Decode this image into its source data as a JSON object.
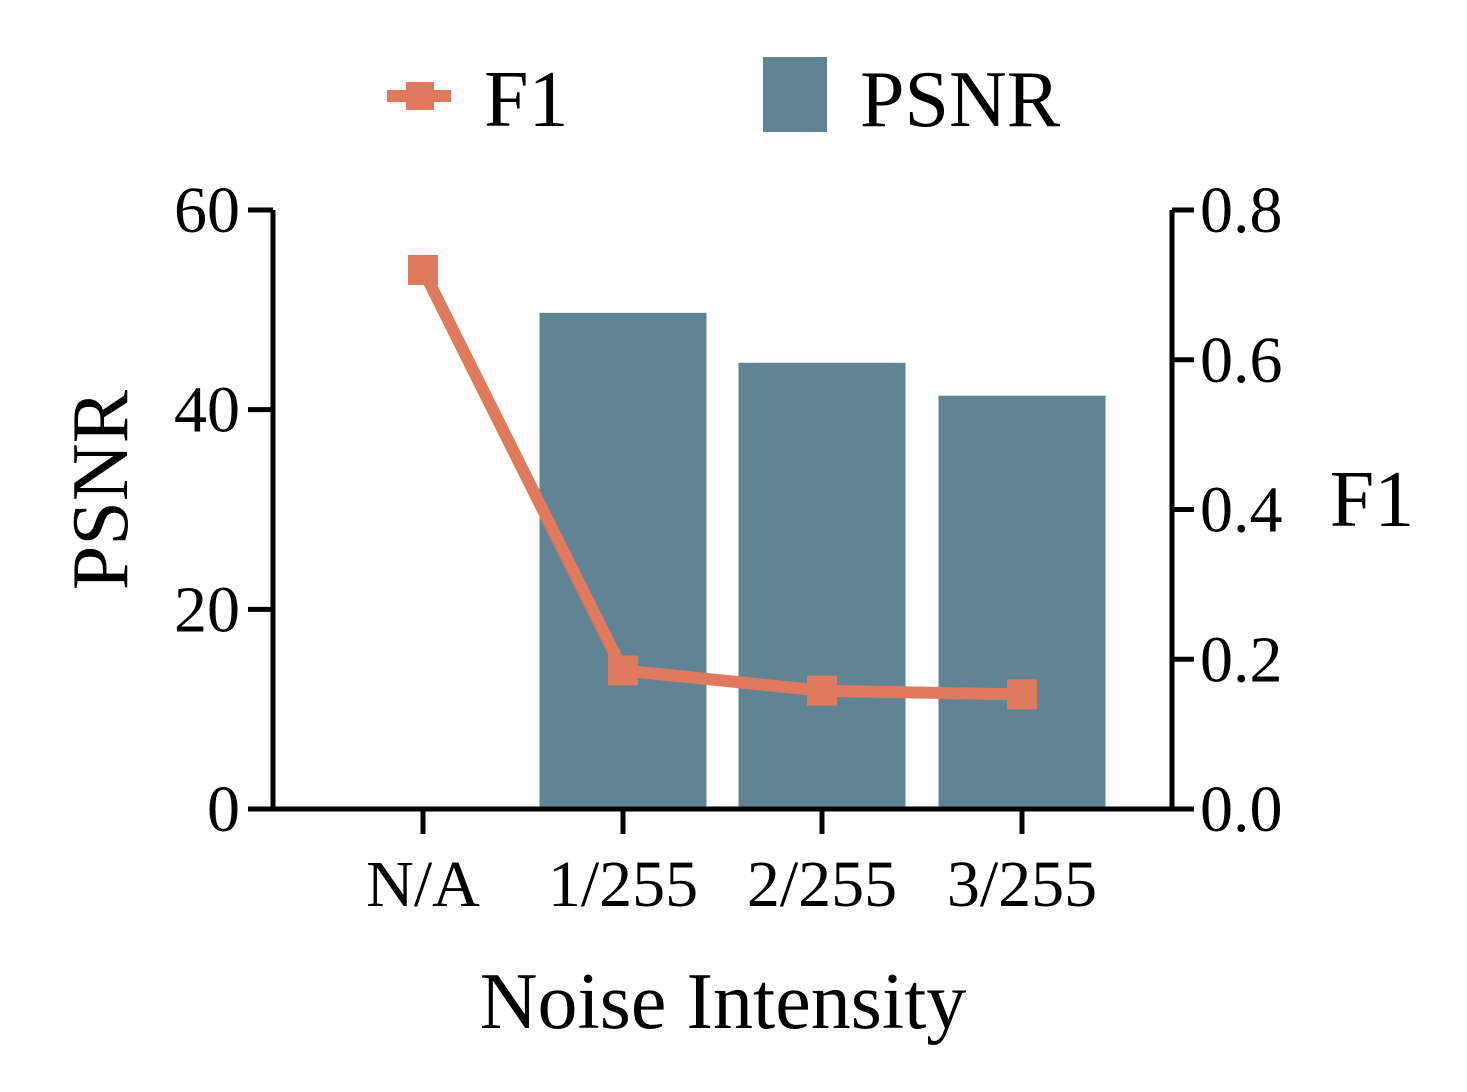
{
  "chart_data": {
    "type": "bar",
    "categories": [
      "N/A",
      "1/255",
      "2/255",
      "3/255"
    ],
    "series": [
      {
        "name": "PSNR",
        "type": "bar",
        "axis": "left",
        "color": "#618494",
        "values": [
          null,
          49.7,
          44.7,
          41.4
        ]
      },
      {
        "name": "F1",
        "type": "line",
        "axis": "right",
        "color": "#E07A5F",
        "values": [
          0.72,
          0.185,
          0.158,
          0.153
        ]
      }
    ],
    "xlabel": "Noise Intensity",
    "ylabel_left": "PSNR",
    "ylabel_right": "F1",
    "ylim_left": [
      0,
      60
    ],
    "yticks_left": [
      "0",
      "20",
      "40",
      "60"
    ],
    "ylim_right": [
      0,
      0.8
    ],
    "yticks_right": [
      "0.0",
      "0.2",
      "0.4",
      "0.6",
      "0.8"
    ],
    "legend": {
      "position": "top",
      "entries": [
        "F1",
        "PSNR"
      ]
    }
  }
}
